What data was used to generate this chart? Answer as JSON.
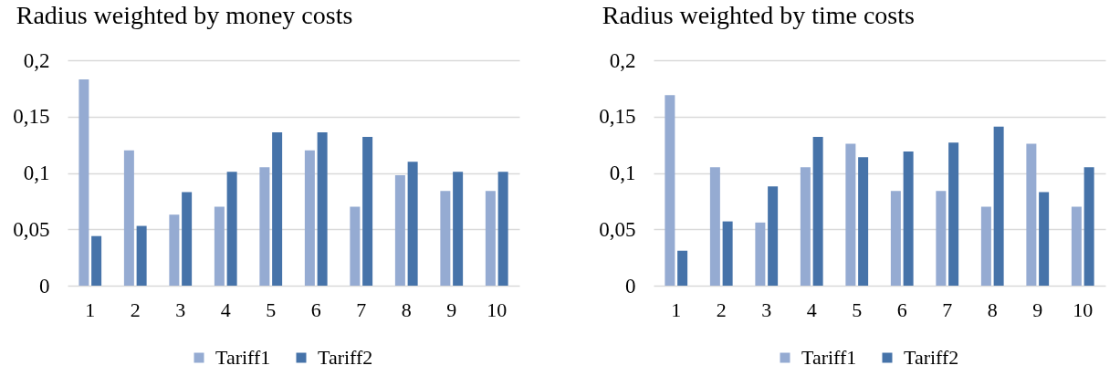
{
  "chart_data": [
    {
      "type": "bar",
      "title": "Radius weighted by money costs",
      "categories": [
        "1",
        "2",
        "3",
        "4",
        "5",
        "6",
        "7",
        "8",
        "9",
        "10"
      ],
      "series": [
        {
          "name": "Tariff1",
          "color": "#95abd2",
          "values": [
            0.183,
            0.12,
            0.063,
            0.07,
            0.105,
            0.12,
            0.07,
            0.098,
            0.084,
            0.084
          ]
        },
        {
          "name": "Tariff2",
          "color": "#4673a9",
          "values": [
            0.044,
            0.053,
            0.083,
            0.101,
            0.136,
            0.136,
            0.132,
            0.11,
            0.101,
            0.101
          ]
        }
      ],
      "ylim": [
        0,
        0.2
      ],
      "yticks": [
        0,
        {
          "value": 0.05,
          "label": "0,05"
        },
        {
          "value": 0.1,
          "label": "0,1"
        },
        {
          "value": 0.15,
          "label": "0,15"
        },
        {
          "value": 0.2,
          "label": "0,2"
        }
      ],
      "grid": "y",
      "legend": "bottom"
    },
    {
      "type": "bar",
      "title": "Radius weighted by time costs",
      "categories": [
        "1",
        "2",
        "3",
        "4",
        "5",
        "6",
        "7",
        "8",
        "9",
        "10"
      ],
      "series": [
        {
          "name": "Tariff1",
          "color": "#95abd2",
          "values": [
            0.169,
            0.105,
            0.056,
            0.105,
            0.126,
            0.084,
            0.084,
            0.07,
            0.126,
            0.07
          ]
        },
        {
          "name": "Tariff2",
          "color": "#4673a9",
          "values": [
            0.031,
            0.057,
            0.088,
            0.132,
            0.114,
            0.119,
            0.127,
            0.141,
            0.083,
            0.105
          ]
        }
      ],
      "ylim": [
        0,
        0.2
      ],
      "yticks": [
        0,
        {
          "value": 0.05,
          "label": "0,05"
        },
        {
          "value": 0.1,
          "label": "0,1"
        },
        {
          "value": 0.15,
          "label": "0,15"
        },
        {
          "value": 0.2,
          "label": "0,2"
        }
      ],
      "grid": "y",
      "legend": "bottom"
    }
  ]
}
